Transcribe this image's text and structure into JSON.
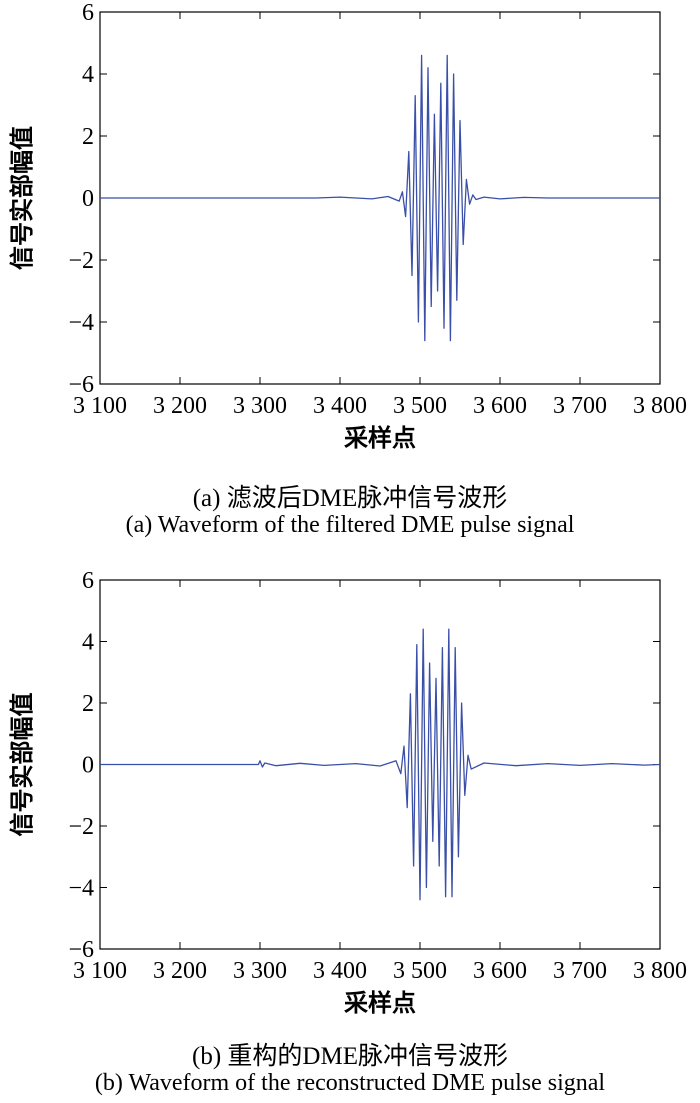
{
  "chart_data": [
    {
      "type": "line",
      "title": "",
      "xlabel": "采样点",
      "ylabel": "信号实部幅值",
      "xlim": [
        3100,
        3800
      ],
      "ylim": [
        -6,
        6
      ],
      "xticks": [
        3100,
        3200,
        3300,
        3400,
        3500,
        3600,
        3700,
        3800
      ],
      "xtick_labels": [
        "3 100",
        "3 200",
        "3 300",
        "3 400",
        "3 500",
        "3 600",
        "3 700",
        "3 800"
      ],
      "yticks": [
        -6,
        -4,
        -2,
        0,
        2,
        4,
        6
      ],
      "ytick_labels": [
        "−6",
        "−4",
        "−2",
        "0",
        "2",
        "4",
        "6"
      ],
      "grid": false,
      "line_color": "#3a4fa8",
      "caption_cn": "(a) 滤波后DME脉冲信号波形",
      "caption_en": "(a) Waveform of the filtered DME pulse signal",
      "series": [
        {
          "x": [
            3100,
            3370,
            3400,
            3440,
            3460,
            3474,
            3478,
            3482,
            3486,
            3490,
            3494,
            3498,
            3502,
            3506,
            3510,
            3514,
            3518,
            3522,
            3526,
            3530,
            3534,
            3538,
            3542,
            3546,
            3550,
            3554,
            3558,
            3562,
            3566,
            3570,
            3580,
            3600,
            3630,
            3660,
            3800
          ],
          "y": [
            0,
            0,
            0.03,
            -0.03,
            0.05,
            -0.1,
            0.2,
            -0.6,
            1.5,
            -2.5,
            3.3,
            -4.0,
            4.6,
            -4.6,
            4.2,
            -3.5,
            2.7,
            -3.0,
            3.7,
            -4.2,
            4.6,
            -4.6,
            4.0,
            -3.3,
            2.5,
            -1.5,
            0.6,
            -0.2,
            0.1,
            -0.05,
            0.03,
            -0.03,
            0.02,
            0,
            0
          ]
        }
      ]
    },
    {
      "type": "line",
      "title": "",
      "xlabel": "采样点",
      "ylabel": "信号实部幅值",
      "xlim": [
        3100,
        3800
      ],
      "ylim": [
        -6,
        6
      ],
      "xticks": [
        3100,
        3200,
        3300,
        3400,
        3500,
        3600,
        3700,
        3800
      ],
      "xtick_labels": [
        "3 100",
        "3 200",
        "3 300",
        "3 400",
        "3 500",
        "3 600",
        "3 700",
        "3 800"
      ],
      "yticks": [
        -6,
        -4,
        -2,
        0,
        2,
        4,
        6
      ],
      "ytick_labels": [
        "−6",
        "−4",
        "−2",
        "0",
        "2",
        "4",
        "6"
      ],
      "grid": false,
      "line_color": "#3a4fa8",
      "caption_cn": "(b) 重构的DME脉冲信号波形",
      "caption_en": "(b) Waveform of the reconstructed DME pulse signal",
      "series": [
        {
          "x": [
            3100,
            3298,
            3300,
            3303,
            3306,
            3320,
            3350,
            3380,
            3420,
            3450,
            3470,
            3476,
            3480,
            3484,
            3488,
            3492,
            3496,
            3500,
            3504,
            3508,
            3512,
            3516,
            3520,
            3524,
            3528,
            3532,
            3536,
            3540,
            3544,
            3548,
            3552,
            3556,
            3560,
            3564,
            3580,
            3620,
            3660,
            3700,
            3740,
            3780,
            3800
          ],
          "y": [
            0,
            0,
            0.12,
            -0.08,
            0.05,
            -0.04,
            0.04,
            -0.03,
            0.03,
            -0.05,
            0.12,
            -0.3,
            0.6,
            -1.4,
            2.3,
            -3.3,
            3.9,
            -4.4,
            4.4,
            -4.0,
            3.3,
            -2.5,
            2.8,
            -3.3,
            3.8,
            -4.3,
            4.4,
            -4.3,
            3.8,
            -3.0,
            2.0,
            -1.0,
            0.3,
            -0.15,
            0.05,
            -0.04,
            0.03,
            -0.03,
            0.03,
            -0.02,
            0
          ]
        }
      ]
    }
  ]
}
